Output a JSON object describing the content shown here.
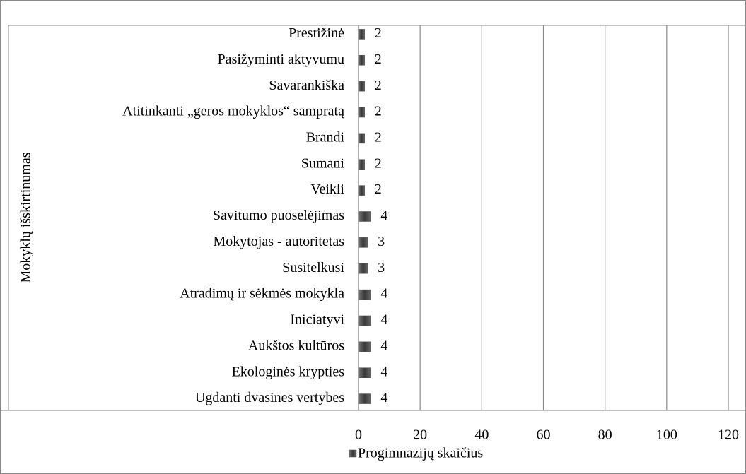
{
  "chart_data": {
    "type": "bar",
    "orientation": "horizontal",
    "y_axis_label": "Mokyklų išskirtinumas",
    "categories": [
      "Prestižinė",
      "Pasižyminti aktyvumu",
      "Savarankiška",
      "Atitinkanti „geros mokyklos“ sampratą",
      "Brandi",
      "Sumani",
      "Veikli",
      "Savitumo puoselėjimas",
      "Mokytojas - autoritetas",
      "Susitelkusi",
      "Atradimų ir sėkmės mokykla",
      "Iniciatyvi",
      "Aukštos kultūros",
      "Ekologinės krypties",
      "Ugdanti dvasines vertybes"
    ],
    "series": [
      {
        "name": "Progimnazijų skaičius",
        "color": "#4d4d4d",
        "values": [
          2,
          2,
          2,
          2,
          2,
          2,
          2,
          4,
          3,
          3,
          4,
          4,
          4,
          4,
          4
        ]
      }
    ],
    "xlim": [
      0,
      120
    ],
    "xticks": [
      0,
      20,
      40,
      60,
      80,
      100,
      120
    ],
    "grid": true,
    "legend": "bottom"
  }
}
